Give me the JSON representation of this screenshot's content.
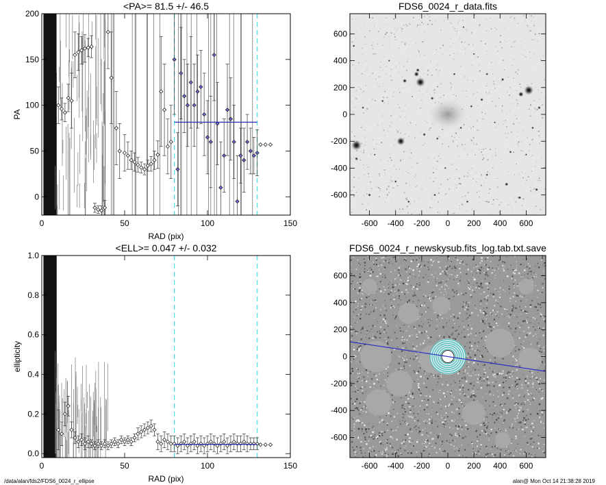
{
  "footer": {
    "path": "/data/alan/fds2/FDS6_0024_r_ellipse",
    "stamp": "alan@  Mon Oct 14 21:38:28 2019"
  },
  "chart_data": [
    {
      "type": "scatter",
      "title": "<PA>=  81.5 +/-  46.5",
      "xlabel": "RAD (pix)",
      "ylabel": "PA",
      "xlim": [
        0,
        150
      ],
      "ylim": [
        -20,
        200
      ],
      "xticks": [
        0,
        50,
        100,
        150
      ],
      "yticks": [
        0,
        50,
        100,
        150,
        200
      ],
      "mean_line": {
        "x": [
          80,
          130
        ],
        "y": 81.5
      },
      "vlines": [
        80,
        130
      ],
      "points": [
        [
          10,
          100,
          20
        ],
        [
          12,
          96,
          12
        ],
        [
          14,
          92,
          10
        ],
        [
          16,
          108,
          15
        ],
        [
          18,
          105,
          30
        ],
        [
          20,
          155,
          25
        ],
        [
          22,
          158,
          20
        ],
        [
          24,
          160,
          15
        ],
        [
          26,
          162,
          15
        ],
        [
          28,
          163,
          10
        ],
        [
          30,
          164,
          12
        ],
        [
          32,
          -12,
          5
        ],
        [
          34,
          -14,
          4
        ],
        [
          36,
          -15,
          5
        ],
        [
          38,
          -12,
          8
        ],
        [
          40,
          180,
          40
        ],
        [
          42,
          130,
          50
        ],
        [
          45,
          75,
          40
        ],
        [
          47,
          50,
          30
        ],
        [
          50,
          48,
          20
        ],
        [
          52,
          45,
          15
        ],
        [
          54,
          40,
          10
        ],
        [
          56,
          38,
          10
        ],
        [
          58,
          35,
          8
        ],
        [
          60,
          32,
          6
        ],
        [
          62,
          30,
          6
        ],
        [
          64,
          34,
          6
        ],
        [
          66,
          36,
          8
        ],
        [
          68,
          40,
          10
        ],
        [
          70,
          46,
          15
        ],
        [
          72,
          115,
          60
        ],
        [
          74,
          95,
          50
        ],
        [
          76,
          55,
          30
        ],
        [
          78,
          60,
          40
        ],
        [
          80,
          150,
          60
        ],
        [
          82,
          30,
          40
        ],
        [
          84,
          135,
          50
        ],
        [
          86,
          110,
          40
        ],
        [
          88,
          100,
          45
        ],
        [
          90,
          125,
          50
        ],
        [
          92,
          100,
          45
        ],
        [
          94,
          115,
          40
        ],
        [
          96,
          120,
          40
        ],
        [
          98,
          90,
          45
        ],
        [
          100,
          65,
          40
        ],
        [
          102,
          60,
          50
        ],
        [
          104,
          155,
          50
        ],
        [
          106,
          80,
          45
        ],
        [
          108,
          10,
          50
        ],
        [
          110,
          45,
          40
        ],
        [
          112,
          95,
          50
        ],
        [
          114,
          85,
          45
        ],
        [
          116,
          60,
          40
        ],
        [
          118,
          -5,
          50
        ],
        [
          120,
          45,
          30
        ],
        [
          122,
          40,
          35
        ],
        [
          124,
          60,
          30
        ],
        [
          126,
          50,
          25
        ],
        [
          128,
          45,
          20
        ],
        [
          130,
          48,
          25
        ],
        [
          132,
          57,
          0
        ],
        [
          135,
          57,
          0
        ],
        [
          138,
          57,
          0
        ]
      ]
    },
    {
      "type": "image",
      "title": "FDS6_0024_r_data.fits",
      "xlim": [
        -750,
        750
      ],
      "ylim": [
        -750,
        750
      ],
      "xticks": [
        -600,
        -400,
        -200,
        0,
        200,
        400,
        600
      ],
      "yticks": [
        -600,
        -400,
        -200,
        0,
        200,
        400,
        600
      ],
      "sources": [
        [
          -700,
          -230,
          20
        ],
        [
          -360,
          -200,
          16
        ],
        [
          -210,
          240,
          18
        ],
        [
          -240,
          300,
          10
        ],
        [
          -330,
          250,
          8
        ],
        [
          620,
          180,
          18
        ],
        [
          560,
          150,
          10
        ],
        [
          -230,
          330,
          7
        ],
        [
          -120,
          120,
          6
        ],
        [
          -180,
          -150,
          6
        ],
        [
          -80,
          -180,
          5
        ],
        [
          260,
          110,
          6
        ],
        [
          180,
          60,
          5
        ],
        [
          100,
          -100,
          5
        ],
        [
          420,
          260,
          6
        ],
        [
          700,
          50,
          6
        ],
        [
          -600,
          -600,
          6
        ],
        [
          -400,
          -500,
          5
        ],
        [
          -100,
          -600,
          5
        ],
        [
          300,
          -450,
          5
        ],
        [
          450,
          -520,
          7
        ],
        [
          550,
          -620,
          6
        ],
        [
          680,
          -560,
          6
        ],
        [
          -700,
          -330,
          6
        ],
        [
          -500,
          100,
          5
        ],
        [
          50,
          300,
          5
        ],
        [
          300,
          300,
          5
        ],
        [
          650,
          -100,
          5
        ],
        [
          -300,
          -650,
          5
        ],
        [
          150,
          -650,
          5
        ],
        [
          480,
          -280,
          5
        ],
        [
          -650,
          50,
          5
        ],
        [
          200,
          450,
          4
        ],
        [
          -450,
          400,
          4
        ],
        [
          -720,
          510,
          5
        ],
        [
          360,
          -60,
          4
        ],
        [
          -560,
          -300,
          4
        ],
        [
          600,
          -300,
          4
        ],
        [
          -20,
          -400,
          4
        ],
        [
          120,
          650,
          4
        ]
      ]
    },
    {
      "type": "scatter",
      "title": "<ELL>= 0.047 +/-  0.032",
      "xlabel": "RAD (pix)",
      "ylabel": "ellipticity",
      "xlim": [
        0,
        150
      ],
      "ylim": [
        -0.02,
        1.0
      ],
      "xticks": [
        0,
        50,
        100,
        150
      ],
      "yticks": [
        0.0,
        0.2,
        0.4,
        0.6,
        0.8,
        1.0
      ],
      "mean_line": {
        "x": [
          80,
          130
        ],
        "y": 0.047
      },
      "vlines": [
        80,
        130
      ],
      "points": [
        [
          10,
          0.12,
          0.1
        ],
        [
          12,
          0.1,
          0.06
        ],
        [
          14,
          0.2,
          0.06
        ],
        [
          16,
          0.24,
          0.05
        ],
        [
          18,
          0.12,
          0.04
        ],
        [
          20,
          0.08,
          0.03
        ],
        [
          22,
          0.06,
          0.03
        ],
        [
          24,
          0.07,
          0.03
        ],
        [
          26,
          0.05,
          0.03
        ],
        [
          28,
          0.06,
          0.03
        ],
        [
          30,
          0.05,
          0.02
        ],
        [
          32,
          0.04,
          0.02
        ],
        [
          34,
          0.05,
          0.02
        ],
        [
          36,
          0.04,
          0.02
        ],
        [
          38,
          0.05,
          0.02
        ],
        [
          40,
          0.04,
          0.02
        ],
        [
          42,
          0.05,
          0.02
        ],
        [
          44,
          0.06,
          0.02
        ],
        [
          46,
          0.05,
          0.02
        ],
        [
          48,
          0.07,
          0.02
        ],
        [
          50,
          0.06,
          0.02
        ],
        [
          52,
          0.07,
          0.02
        ],
        [
          54,
          0.06,
          0.02
        ],
        [
          56,
          0.08,
          0.02
        ],
        [
          58,
          0.1,
          0.03
        ],
        [
          60,
          0.11,
          0.03
        ],
        [
          62,
          0.12,
          0.03
        ],
        [
          64,
          0.13,
          0.03
        ],
        [
          66,
          0.14,
          0.03
        ],
        [
          68,
          0.12,
          0.03
        ],
        [
          70,
          0.06,
          0.04
        ],
        [
          72,
          0.05,
          0.04
        ],
        [
          74,
          0.07,
          0.04
        ],
        [
          76,
          0.06,
          0.04
        ],
        [
          78,
          0.05,
          0.04
        ],
        [
          80,
          0.05,
          0.04
        ],
        [
          82,
          0.04,
          0.04
        ],
        [
          84,
          0.05,
          0.04
        ],
        [
          86,
          0.06,
          0.04
        ],
        [
          88,
          0.04,
          0.04
        ],
        [
          90,
          0.05,
          0.04
        ],
        [
          92,
          0.06,
          0.04
        ],
        [
          94,
          0.04,
          0.04
        ],
        [
          96,
          0.05,
          0.04
        ],
        [
          98,
          0.04,
          0.04
        ],
        [
          100,
          0.05,
          0.04
        ],
        [
          102,
          0.06,
          0.04
        ],
        [
          104,
          0.05,
          0.04
        ],
        [
          106,
          0.04,
          0.04
        ],
        [
          108,
          0.05,
          0.04
        ],
        [
          110,
          0.06,
          0.04
        ],
        [
          112,
          0.04,
          0.04
        ],
        [
          114,
          0.05,
          0.04
        ],
        [
          116,
          0.06,
          0.04
        ],
        [
          118,
          0.05,
          0.04
        ],
        [
          120,
          0.05,
          0.04
        ],
        [
          122,
          0.06,
          0.04
        ],
        [
          124,
          0.05,
          0.04
        ],
        [
          126,
          0.05,
          0.03
        ],
        [
          128,
          0.05,
          0.03
        ],
        [
          130,
          0.05,
          0.03
        ],
        [
          132,
          0.045,
          0
        ],
        [
          135,
          0.045,
          0
        ],
        [
          138,
          0.045,
          0
        ]
      ]
    },
    {
      "type": "image",
      "title": "FDS6_0024_r_newskysub.fits_log.tab.txt.save",
      "xlim": [
        -750,
        750
      ],
      "ylim": [
        -750,
        750
      ],
      "xticks": [
        -600,
        -400,
        -200,
        0,
        200,
        400,
        600
      ],
      "yticks": [
        -600,
        -400,
        -200,
        0,
        200,
        400,
        600
      ],
      "pa_line": {
        "x": [
          -750,
          750
        ],
        "y": [
          110,
          -110
        ]
      },
      "masks": [
        [
          -550,
          0,
          120
        ],
        [
          -300,
          320,
          80
        ],
        [
          -110,
          -20,
          110
        ],
        [
          -370,
          -200,
          100
        ],
        [
          -530,
          -340,
          100
        ],
        [
          400,
          100,
          110
        ],
        [
          630,
          -20,
          90
        ],
        [
          200,
          -420,
          90
        ],
        [
          -50,
          380,
          70
        ],
        [
          600,
          520,
          60
        ],
        [
          -600,
          520,
          60
        ],
        [
          420,
          -620,
          60
        ]
      ],
      "ellipse_radii": [
        10,
        25,
        40,
        55,
        70,
        85,
        100,
        115,
        130
      ]
    }
  ]
}
